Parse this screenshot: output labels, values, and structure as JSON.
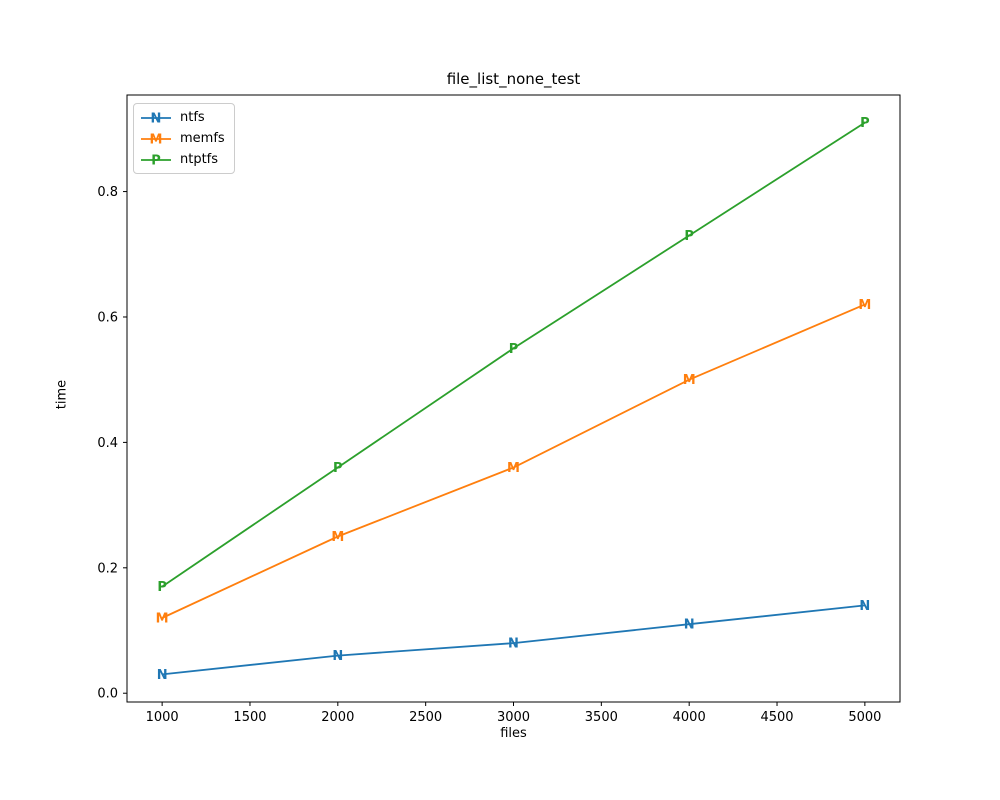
{
  "chart_data": {
    "type": "line",
    "title": "file_list_none_test",
    "xlabel": "files",
    "ylabel": "time",
    "x": [
      1000,
      2000,
      3000,
      4000,
      5000
    ],
    "series": [
      {
        "name": "ntfs",
        "marker": "N",
        "color": "#1f77b4",
        "values": [
          0.03,
          0.06,
          0.08,
          0.11,
          0.14
        ]
      },
      {
        "name": "memfs",
        "marker": "M",
        "color": "#ff7f0e",
        "values": [
          0.12,
          0.25,
          0.36,
          0.5,
          0.62
        ]
      },
      {
        "name": "ntptfs",
        "marker": "P",
        "color": "#2ca02c",
        "values": [
          0.17,
          0.36,
          0.55,
          0.73,
          0.91
        ]
      }
    ],
    "xticks": [
      1000,
      1500,
      2000,
      2500,
      3000,
      3500,
      4000,
      4500,
      5000
    ],
    "xticklabels": [
      "1000",
      "1500",
      "2000",
      "2500",
      "3000",
      "3500",
      "4000",
      "4500",
      "5000"
    ],
    "yticks": [
      0.0,
      0.2,
      0.4,
      0.6,
      0.8
    ],
    "yticklabels": [
      "0.0",
      "0.2",
      "0.4",
      "0.6",
      "0.8"
    ],
    "xlim": [
      800,
      5200
    ],
    "ylim": [
      -0.014,
      0.954
    ],
    "grid": false,
    "legend_position": "upper left",
    "spine_color": "#000000",
    "background_color": "#ffffff"
  }
}
